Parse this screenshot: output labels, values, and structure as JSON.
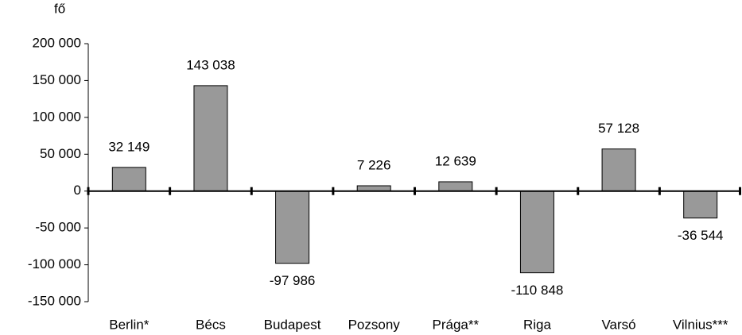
{
  "chart_data": {
    "type": "bar",
    "y_axis_label": "fő",
    "categories": [
      "Berlin*",
      "Bécs",
      "Budapest",
      "Pozsony",
      "Prága**",
      "Riga",
      "Varsó",
      "Vilnius***"
    ],
    "values": [
      32149,
      143038,
      -97986,
      7226,
      12639,
      -110848,
      57128,
      -36544
    ],
    "value_labels": [
      "32 149",
      "143 038",
      "-97 986",
      "7 226",
      "12 639",
      "-110 848",
      "57 128",
      "-36 544"
    ],
    "color": "#999999",
    "ylim": [
      -150000,
      200000
    ],
    "yticks": [
      {
        "value": -150000,
        "label": "-150 000"
      },
      {
        "value": -100000,
        "label": "-100 000"
      },
      {
        "value": -50000,
        "label": "-50 000"
      },
      0,
      {
        "value": 50000,
        "label": "50 000"
      },
      {
        "value": 100000,
        "label": "100 000"
      },
      {
        "value": 150000,
        "label": "150 000"
      },
      {
        "value": 200000,
        "label": "200 000"
      }
    ],
    "grid": false
  }
}
